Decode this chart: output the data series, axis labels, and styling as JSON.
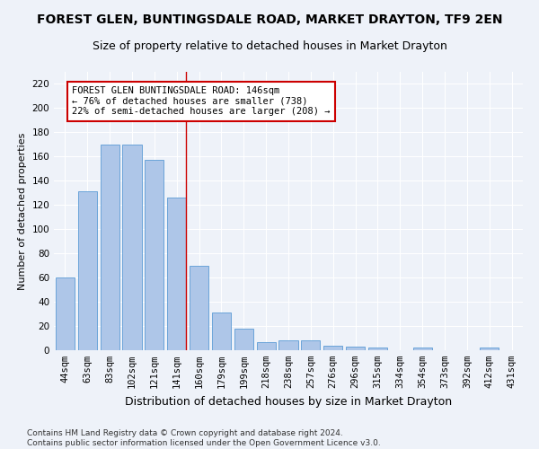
{
  "title": "FOREST GLEN, BUNTINGSDALE ROAD, MARKET DRAYTON, TF9 2EN",
  "subtitle": "Size of property relative to detached houses in Market Drayton",
  "xlabel": "Distribution of detached houses by size in Market Drayton",
  "ylabel": "Number of detached properties",
  "categories": [
    "44sqm",
    "63sqm",
    "83sqm",
    "102sqm",
    "121sqm",
    "141sqm",
    "160sqm",
    "179sqm",
    "199sqm",
    "218sqm",
    "238sqm",
    "257sqm",
    "276sqm",
    "296sqm",
    "315sqm",
    "334sqm",
    "354sqm",
    "373sqm",
    "392sqm",
    "412sqm",
    "431sqm"
  ],
  "values": [
    60,
    131,
    170,
    170,
    157,
    126,
    70,
    31,
    18,
    7,
    8,
    8,
    4,
    3,
    2,
    0,
    2,
    0,
    0,
    2,
    0
  ],
  "bar_color": "#aec6e8",
  "bar_edge_color": "#5b9bd5",
  "marker_index": 5,
  "marker_label_line1": "FOREST GLEN BUNTINGSDALE ROAD: 146sqm",
  "marker_label_line2": "← 76% of detached houses are smaller (738)",
  "marker_label_line3": "22% of semi-detached houses are larger (208) →",
  "annotation_box_edge_color": "#cc0000",
  "vline_color": "#cc0000",
  "ylim": [
    0,
    230
  ],
  "yticks": [
    0,
    20,
    40,
    60,
    80,
    100,
    120,
    140,
    160,
    180,
    200,
    220
  ],
  "background_color": "#eef2f9",
  "grid_color": "#ffffff",
  "footer_line1": "Contains HM Land Registry data © Crown copyright and database right 2024.",
  "footer_line2": "Contains public sector information licensed under the Open Government Licence v3.0.",
  "title_fontsize": 10,
  "subtitle_fontsize": 9,
  "xlabel_fontsize": 9,
  "ylabel_fontsize": 8,
  "tick_fontsize": 7.5,
  "annotation_fontsize": 7.5,
  "footer_fontsize": 6.5
}
